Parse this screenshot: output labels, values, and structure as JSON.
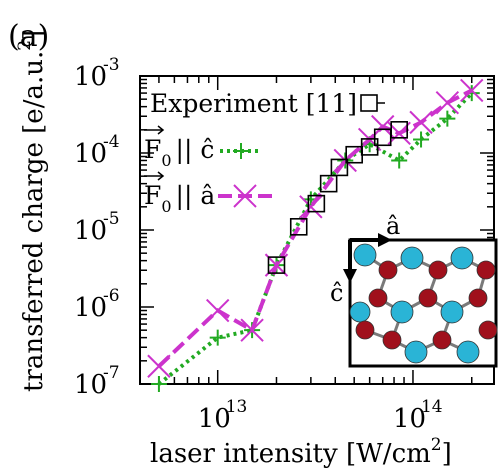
{
  "panel_label": "(a)",
  "colors": {
    "experiment": "#000000",
    "f_parallel_c": "#22aa22",
    "f_parallel_a": "#cc33cc",
    "inset_cyan": "#2ab4d6",
    "inset_red": "#a0101c"
  },
  "chart_data": {
    "type": "scatter",
    "xlabel_text": "laser intensity [W/cm",
    "xlabel_sup": "2",
    "xlabel_close": "]",
    "ylabel_text": "transferred charge [e/a.u.",
    "ylabel_sup": "2",
    "ylabel_close": "]",
    "x_scale": "log",
    "y_scale": "log",
    "xlim": [
      4000000000000.0,
      260000000000000.0
    ],
    "ylim": [
      1e-07,
      0.001
    ],
    "x_ticks": [
      {
        "value": 10000000000000.0,
        "base": "10",
        "exp": "13"
      },
      {
        "value": 100000000000000.0,
        "base": "10",
        "exp": "14"
      }
    ],
    "y_ticks": [
      {
        "value": 1e-07,
        "base": "10",
        "exp": "-7"
      },
      {
        "value": 1e-06,
        "base": "10",
        "exp": "-6"
      },
      {
        "value": 1e-05,
        "base": "10",
        "exp": "-5"
      },
      {
        "value": 0.0001,
        "base": "10",
        "exp": "-4"
      },
      {
        "value": 0.001,
        "base": "10",
        "exp": "-3"
      }
    ],
    "legend_position": "top-left",
    "series": [
      {
        "key": "experiment",
        "label": "Experiment [11]",
        "marker": "square",
        "line": "none",
        "x": [
          20000000000000.0,
          26000000000000.0,
          32000000000000.0,
          37000000000000.0,
          42000000000000.0,
          50000000000000.0,
          60000000000000.0,
          70000000000000.0,
          85000000000000.0
        ],
        "y": [
          3.5e-06,
          1.1e-05,
          2.2e-05,
          4e-05,
          6.5e-05,
          9.5e-05,
          0.00012,
          0.00016,
          0.0002
        ]
      },
      {
        "key": "f_parallel_c",
        "label_vec": "F",
        "label_sub": "0",
        "label_rel": "|| ĉ",
        "marker": "plus",
        "line": "dotted",
        "x": [
          5000000000000.0,
          10000000000000.0,
          15000000000000.0,
          20000000000000.0,
          30000000000000.0,
          45000000000000.0,
          60000000000000.0,
          85000000000000.0,
          110000000000000.0,
          150000000000000.0,
          200000000000000.0
        ],
        "y": [
          1e-07,
          4e-07,
          5e-07,
          3.5e-06,
          2.5e-05,
          8e-05,
          0.00013,
          8e-05,
          0.00015,
          0.00028,
          0.0006
        ]
      },
      {
        "key": "f_parallel_a",
        "label_vec": "F",
        "label_sub": "0",
        "label_rel": "|| â",
        "marker": "x",
        "line": "dashed",
        "x": [
          5000000000000.0,
          10000000000000.0,
          15000000000000.0,
          20000000000000.0,
          30000000000000.0,
          45000000000000.0,
          60000000000000.0,
          70000000000000.0,
          85000000000000.0,
          110000000000000.0,
          150000000000000.0,
          200000000000000.0
        ],
        "y": [
          1.7e-07,
          9e-07,
          5e-07,
          3.5e-06,
          2e-05,
          8e-05,
          0.00015,
          0.00022,
          0.00018,
          0.00025,
          0.00045,
          0.00065
        ]
      }
    ],
    "inset": {
      "axis_a": "â",
      "axis_c": "ĉ"
    }
  }
}
